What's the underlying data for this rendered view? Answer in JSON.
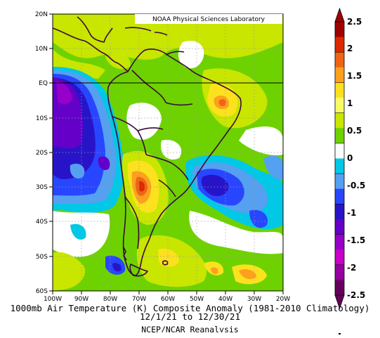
{
  "lab_label": "NOAA Physical Sciences Laboratory",
  "lat_labels": [
    "20N",
    "10N",
    "EQ",
    "10S",
    "20S",
    "30S",
    "40S",
    "50S",
    "60S"
  ],
  "lon_labels": [
    "100W",
    "90W",
    "80W",
    "70W",
    "60W",
    "50W",
    "40W",
    "30W",
    "20W"
  ],
  "colorbar": {
    "labels": [
      "2.5",
      "2",
      "1.5",
      "1",
      "0.5",
      "0",
      "-0.5",
      "-1",
      "-1.5",
      "-2",
      "-2.5"
    ],
    "colors": [
      "#a00000",
      "#dc2800",
      "#f06414",
      "#fca01e",
      "#fce11e",
      "#fafa64",
      "#c8e600",
      "#6ed200",
      "#ffffff",
      "#00c8e6",
      "#55a0f0",
      "#2846ff",
      "#2814c8",
      "#6400c8",
      "#9600c8",
      "#c800c8",
      "#9600a0",
      "#64005a"
    ]
  },
  "caption": {
    "line1": "1000mb Air Temperature (K) Composite Anomaly (1981-2010 Climatology)",
    "line2": "12/1/21 to 12/30/21",
    "line3": "NCEP/NCAR Reanalysis"
  }
}
